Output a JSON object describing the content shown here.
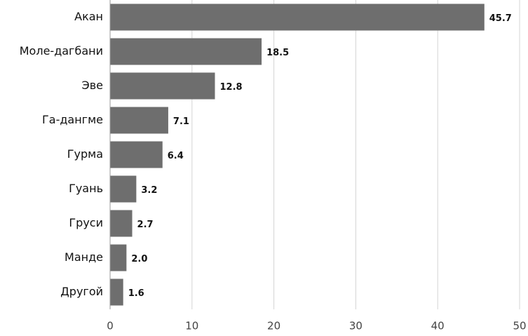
{
  "chart_data": {
    "type": "barh",
    "categories": [
      "Акан",
      "Моле-дагбани",
      "Эве",
      "Га-дангме",
      "Гурма",
      "Гуань",
      "Груси",
      "Манде",
      "Другой"
    ],
    "values": [
      45.7,
      18.5,
      12.8,
      7.1,
      6.4,
      3.2,
      2.7,
      2.0,
      1.6
    ],
    "value_labels": [
      "45.7",
      "18.5",
      "12.8",
      "7.1",
      "6.4",
      "3.2",
      "2.7",
      "2.0",
      "1.6"
    ],
    "color": "#6e6e6e",
    "xlim": [
      0,
      50
    ],
    "xticks": [
      0,
      10,
      20,
      30,
      40,
      50
    ],
    "grid": true
  }
}
